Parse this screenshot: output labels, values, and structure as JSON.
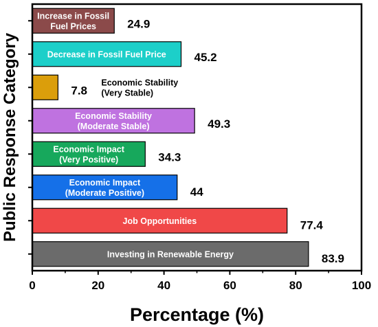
{
  "chart_data": {
    "type": "bar",
    "orientation": "horizontal",
    "title": "",
    "xlabel": "Percentage (%)",
    "ylabel": "Public Response Category",
    "xlim": [
      0,
      100
    ],
    "xticks": [
      "0",
      "20",
      "40",
      "60",
      "80",
      "100"
    ],
    "grid": false,
    "categories": [
      {
        "label_lines": [
          "Increase in Fossil",
          "Fuel Prices"
        ],
        "value": 24.9,
        "value_text": "24.9",
        "color": "#8B4A4A",
        "label_position": "inside",
        "label_color": "#ffffff"
      },
      {
        "label_lines": [
          "Decrease in Fossil Fuel Price"
        ],
        "value": 45.2,
        "value_text": "45.2",
        "color": "#1CCFC9",
        "label_position": "inside",
        "label_color": "#ffffff"
      },
      {
        "label_lines": [
          "Economic Stability",
          "(Very Stable)"
        ],
        "value": 7.8,
        "value_text": "7.8",
        "color": "#DB9E0B",
        "label_position": "outside",
        "label_color": "#000000"
      },
      {
        "label_lines": [
          "Economic Stability",
          "(Moderate Stable)"
        ],
        "value": 49.3,
        "value_text": "49.3",
        "color": "#BF72E0",
        "label_position": "inside",
        "label_color": "#ffffff"
      },
      {
        "label_lines": [
          "Economic Impact",
          "(Very Positive)"
        ],
        "value": 34.3,
        "value_text": "34.3",
        "color": "#17A85C",
        "label_position": "inside",
        "label_color": "#ffffff"
      },
      {
        "label_lines": [
          "Economic Impact",
          "(Moderate Positive)"
        ],
        "value": 44,
        "value_text": "44",
        "color": "#1570E8",
        "label_position": "inside",
        "label_color": "#ffffff"
      },
      {
        "label_lines": [
          "Job Opportunities"
        ],
        "value": 77.4,
        "value_text": "77.4",
        "color": "#F04848",
        "label_position": "inside",
        "label_color": "#ffffff"
      },
      {
        "label_lines": [
          "Investing in Renewable Energy"
        ],
        "value": 83.9,
        "value_text": "83.9",
        "color": "#6B6B6B",
        "label_position": "inside",
        "label_color": "#ffffff"
      }
    ]
  }
}
